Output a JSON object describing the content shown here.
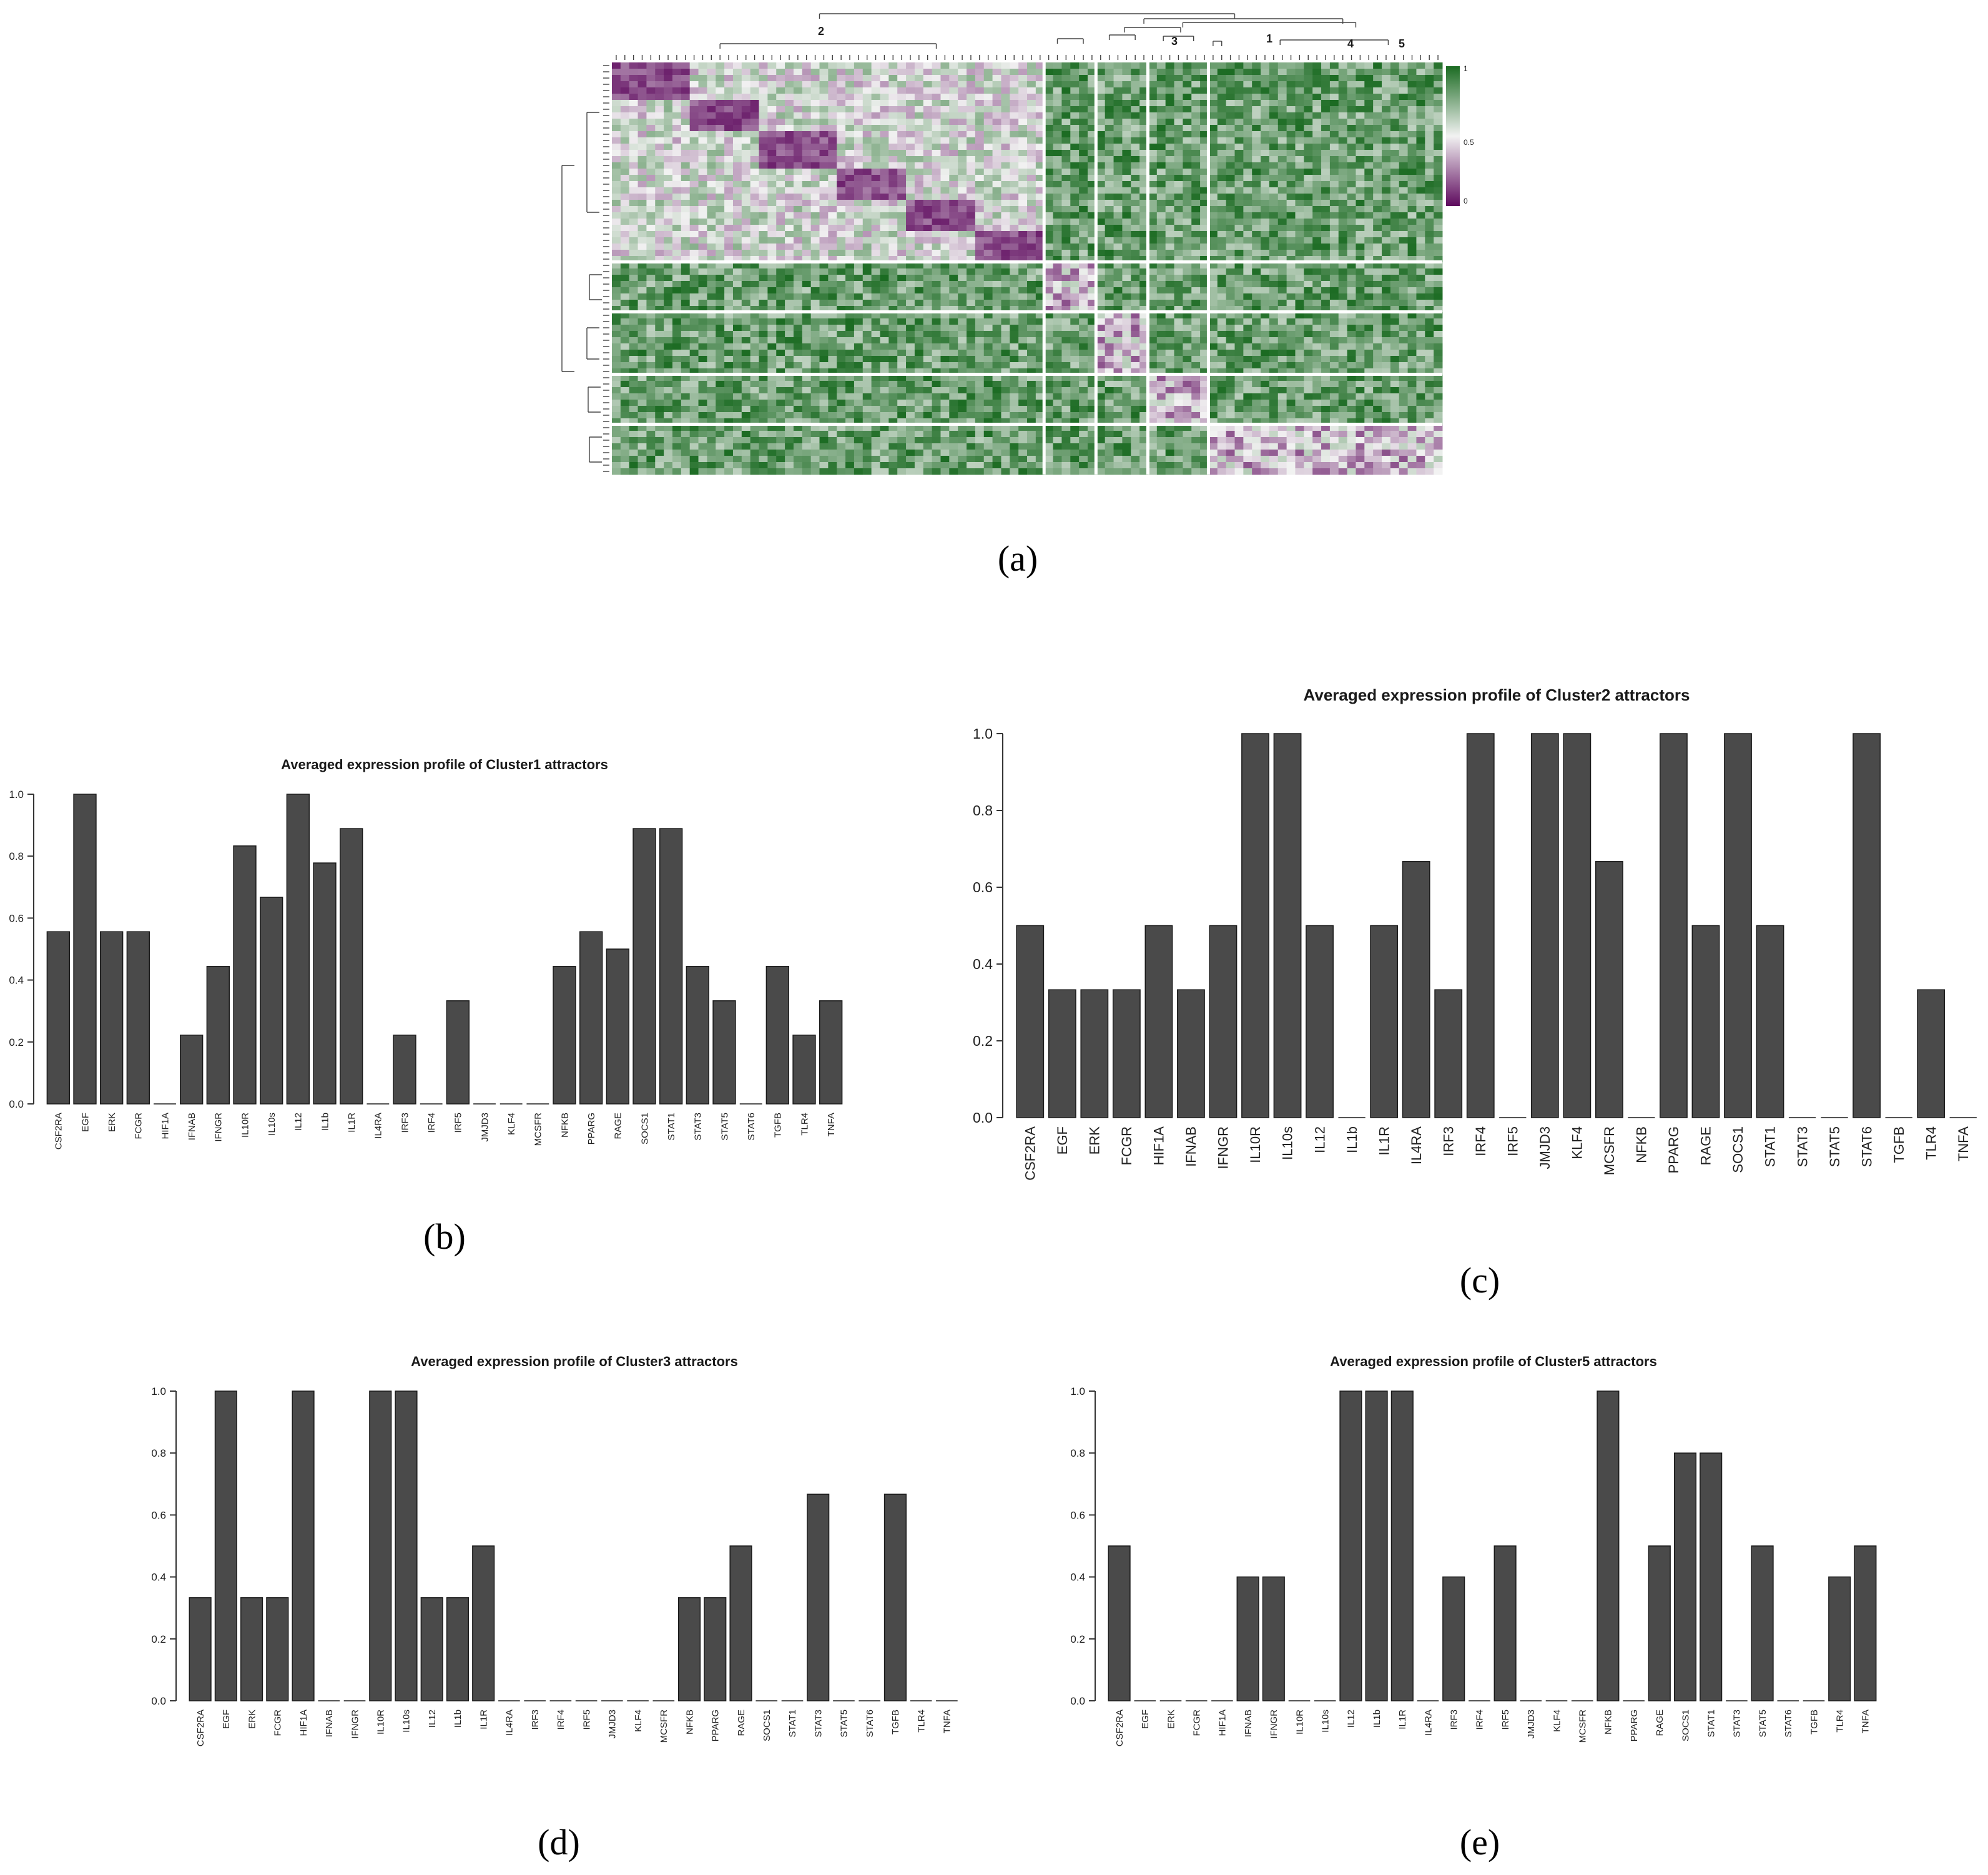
{
  "heatmap": {
    "cluster_labels": [
      "2",
      "3",
      "1",
      "4",
      "5"
    ],
    "colorbar": {
      "tick_labels": [
        "1",
        "0.5",
        "0"
      ],
      "low_color": "#5e0a5e",
      "mid_color": "#f2f2f2",
      "high_color": "#1b6b22"
    },
    "panel_label": "(a)"
  },
  "chart_data": [
    {
      "type": "bar",
      "title": "Averaged expression profile of Cluster1 attractors",
      "panel_label": "(b)",
      "categories": [
        "CSF2RA",
        "EGF",
        "ERK",
        "FCGR",
        "HIF1A",
        "IFNAB",
        "IFNGR",
        "IL10R",
        "IL10s",
        "IL12",
        "IL1b",
        "IL1R",
        "IL4RA",
        "IRF3",
        "IRF4",
        "IRF5",
        "JMJD3",
        "KLF4",
        "MCSFR",
        "NFKB",
        "PPARG",
        "RAGE",
        "SOCS1",
        "STAT1",
        "STAT3",
        "STAT5",
        "STAT6",
        "TGFB",
        "TLR4",
        "TNFA"
      ],
      "values": [
        0.556,
        1.0,
        0.556,
        0.556,
        0.0,
        0.222,
        0.444,
        0.833,
        0.667,
        1.0,
        0.778,
        0.889,
        0.0,
        0.222,
        0.0,
        0.333,
        0.0,
        0.0,
        0.0,
        0.444,
        0.556,
        0.5,
        0.889,
        0.889,
        0.444,
        0.333,
        0.0,
        0.444,
        0.222,
        0.333
      ],
      "yticks": [
        "0.0",
        "0.2",
        "0.4",
        "0.6",
        "0.8",
        "1.0"
      ],
      "ylim": [
        0,
        1
      ]
    },
    {
      "type": "bar",
      "title": "Averaged expression profile of Cluster2 attractors",
      "panel_label": "(c)",
      "categories": [
        "CSF2RA",
        "EGF",
        "ERK",
        "FCGR",
        "HIF1A",
        "IFNAB",
        "IFNGR",
        "IL10R",
        "IL10s",
        "IL12",
        "IL1b",
        "IL1R",
        "IL4RA",
        "IRF3",
        "IRF4",
        "IRF5",
        "JMJD3",
        "KLF4",
        "MCSFR",
        "NFKB",
        "PPARG",
        "RAGE",
        "SOCS1",
        "STAT1",
        "STAT3",
        "STAT5",
        "STAT6",
        "TGFB",
        "TLR4",
        "TNFA"
      ],
      "values": [
        0.5,
        0.333,
        0.333,
        0.333,
        0.5,
        0.333,
        0.5,
        1.0,
        1.0,
        0.5,
        0.0,
        0.5,
        0.667,
        0.333,
        1.0,
        0.0,
        1.0,
        1.0,
        0.667,
        0.0,
        1.0,
        0.5,
        1.0,
        0.5,
        0.0,
        0.0,
        1.0,
        0.0,
        0.333,
        0.0
      ],
      "yticks": [
        "0.0",
        "0.2",
        "0.4",
        "0.6",
        "0.8",
        "1.0"
      ],
      "ylim": [
        0,
        1
      ]
    },
    {
      "type": "bar",
      "title": "Averaged expression profile of Cluster3 attractors",
      "panel_label": "(d)",
      "categories": [
        "CSF2RA",
        "EGF",
        "ERK",
        "FCGR",
        "HIF1A",
        "IFNAB",
        "IFNGR",
        "IL10R",
        "IL10s",
        "IL12",
        "IL1b",
        "IL1R",
        "IL4RA",
        "IRF3",
        "IRF4",
        "IRF5",
        "JMJD3",
        "KLF4",
        "MCSFR",
        "NFKB",
        "PPARG",
        "RAGE",
        "SOCS1",
        "STAT1",
        "STAT3",
        "STAT5",
        "STAT6",
        "TGFB",
        "TLR4",
        "TNFA"
      ],
      "values": [
        0.333,
        1.0,
        0.333,
        0.333,
        1.0,
        0.0,
        0.0,
        1.0,
        1.0,
        0.333,
        0.333,
        0.5,
        0.0,
        0.0,
        0.0,
        0.0,
        0.0,
        0.0,
        0.0,
        0.333,
        0.333,
        0.5,
        0.0,
        0.0,
        0.667,
        0.0,
        0.0,
        0.667,
        0.0,
        0.0
      ],
      "yticks": [
        "0.0",
        "0.2",
        "0.4",
        "0.6",
        "0.8",
        "1.0"
      ],
      "ylim": [
        0,
        1
      ]
    },
    {
      "type": "bar",
      "title": "Averaged expression profile of Cluster5 attractors",
      "panel_label": "(e)",
      "categories": [
        "CSF2RA",
        "EGF",
        "ERK",
        "FCGR",
        "HIF1A",
        "IFNAB",
        "IFNGR",
        "IL10R",
        "IL10s",
        "IL12",
        "IL1b",
        "IL1R",
        "IL4RA",
        "IRF3",
        "IRF4",
        "IRF5",
        "JMJD3",
        "KLF4",
        "MCSFR",
        "NFKB",
        "PPARG",
        "RAGE",
        "SOCS1",
        "STAT1",
        "STAT3",
        "STAT5",
        "STAT6",
        "TGFB",
        "TLR4",
        "TNFA"
      ],
      "values": [
        0.5,
        0.0,
        0.0,
        0.0,
        0.0,
        0.4,
        0.4,
        0.0,
        0.0,
        1.0,
        1.0,
        1.0,
        0.0,
        0.4,
        0.0,
        0.5,
        0.0,
        0.0,
        0.0,
        1.0,
        0.0,
        0.5,
        0.8,
        0.8,
        0.0,
        0.5,
        0.0,
        0.0,
        0.4,
        0.5
      ],
      "yticks": [
        "0.0",
        "0.2",
        "0.4",
        "0.6",
        "0.8",
        "1.0"
      ],
      "ylim": [
        0,
        1
      ]
    }
  ]
}
